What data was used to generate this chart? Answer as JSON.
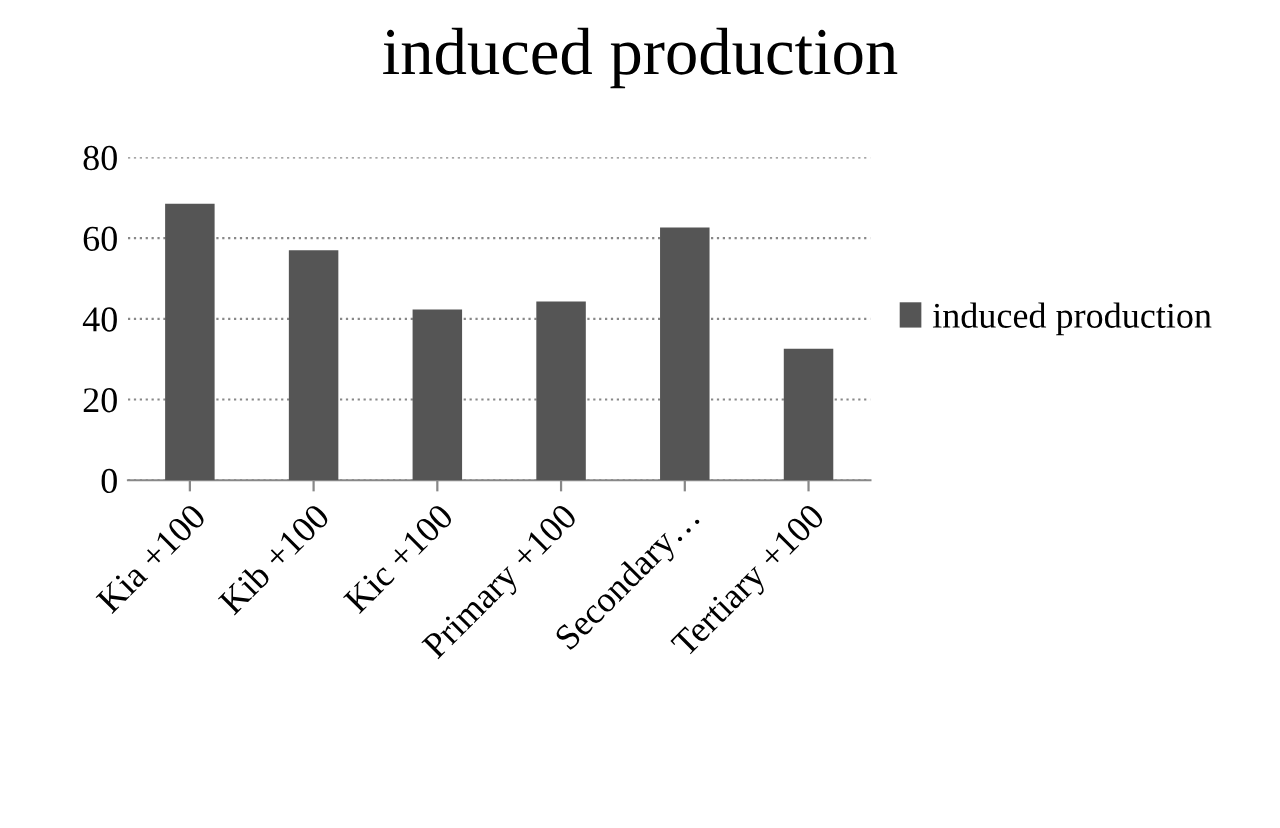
{
  "chart_data": {
    "type": "bar",
    "title": "induced production",
    "categories": [
      "Kia +100",
      "Kib +100",
      "Kic +100",
      "Primary +100",
      "Secondary…",
      "Tertiary +100"
    ],
    "series": [
      {
        "name": "induced production",
        "color": "#555555",
        "values": [
          68.5,
          57,
          42.3,
          44.3,
          62.6,
          32.6
        ]
      }
    ],
    "ylim": [
      0,
      80
    ],
    "yticks": [
      0,
      20,
      40,
      60,
      80
    ],
    "grid": "y",
    "legend": "right"
  }
}
